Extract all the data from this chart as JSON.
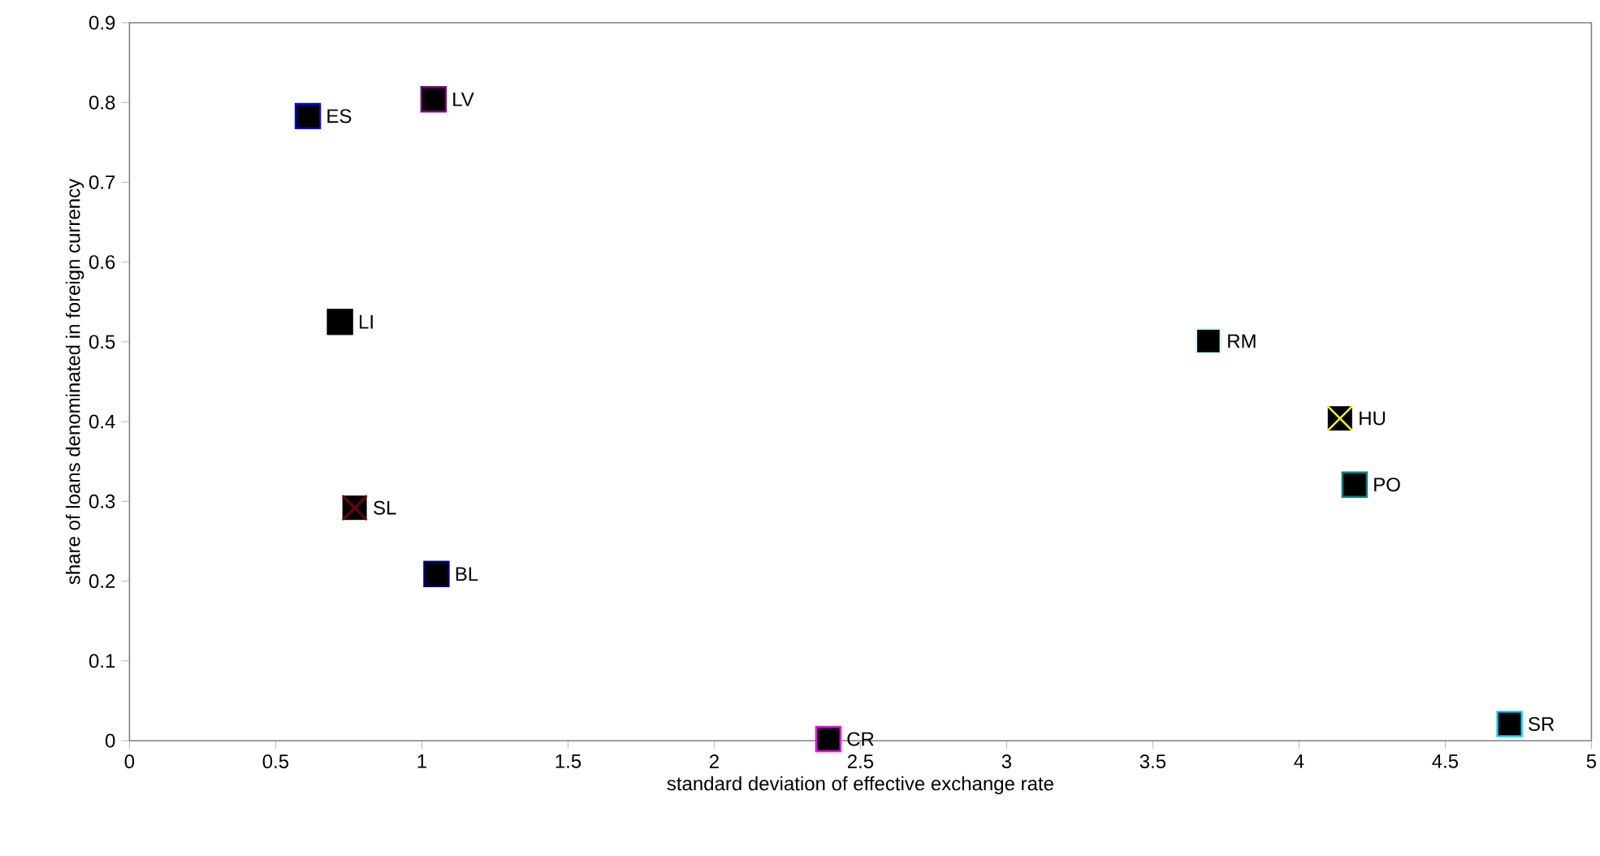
{
  "chart_data": {
    "type": "scatter",
    "xlabel": "standard deviation of effective exchange rate",
    "ylabel": "share of loans denominated in foreign currency",
    "xlim": [
      0,
      5
    ],
    "xticks": [
      0,
      0.5,
      1,
      1.5,
      2,
      2.5,
      3,
      3.5,
      4,
      4.5,
      5
    ],
    "ylim": [
      0,
      0.9
    ],
    "yticks": [
      0,
      0.1,
      0.2,
      0.3,
      0.4,
      0.5,
      0.6,
      0.7,
      0.8,
      0.9
    ],
    "series": [
      {
        "name": "ES",
        "color": "#0000ff",
        "marker": "square",
        "x": [
          0.61
        ],
        "values": [
          0.783
        ]
      },
      {
        "name": "LV",
        "color": "#800080",
        "marker": "square",
        "x": [
          1.04
        ],
        "values": [
          0.804
        ]
      },
      {
        "name": "LI",
        "color": "#000000",
        "marker": "square",
        "x": [
          0.72
        ],
        "values": [
          0.525
        ]
      },
      {
        "name": "SL",
        "color": "#800000",
        "marker": "cross",
        "x": [
          0.77
        ],
        "values": [
          0.292
        ]
      },
      {
        "name": "BL",
        "color": "#000080",
        "marker": "square",
        "x": [
          1.05
        ],
        "values": [
          0.209
        ]
      },
      {
        "name": "CR",
        "color": "#ff00ff",
        "marker": "square",
        "x": [
          2.39
        ],
        "values": [
          0.002
        ]
      },
      {
        "name": "RM",
        "color": "#ccffff",
        "marker": "square",
        "x": [
          3.69
        ],
        "values": [
          0.501
        ]
      },
      {
        "name": "HU",
        "color": "#ffff00",
        "marker": "cross",
        "x": [
          4.14
        ],
        "values": [
          0.404
        ]
      },
      {
        "name": "PO",
        "color": "#008080",
        "marker": "square",
        "x": [
          4.19
        ],
        "values": [
          0.321
        ]
      },
      {
        "name": "SR",
        "color": "#00ccff",
        "marker": "square",
        "x": [
          4.72
        ],
        "values": [
          0.021
        ]
      }
    ]
  }
}
